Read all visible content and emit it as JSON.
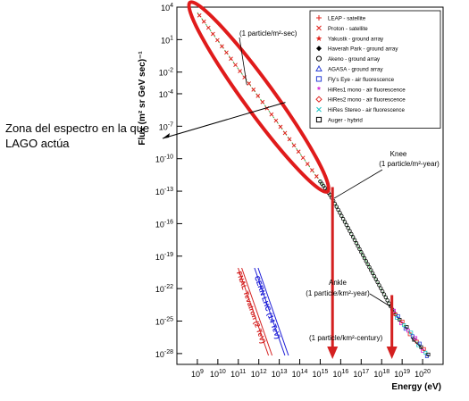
{
  "side_note": "Zona del espectro en la que LAGO actúa",
  "chart_data": {
    "type": "scatter",
    "xlabel": "Energy (eV)",
    "ylabel": "Flux (m² sr GeV sec)⁻¹",
    "x_scale": "log",
    "y_scale": "log",
    "xlim": [
      100000000.0,
      1e+21
    ],
    "ylim": [
      1e-29,
      10000.0
    ],
    "x_tick_exponents": [
      9,
      10,
      11,
      12,
      13,
      14,
      15,
      16,
      17,
      18,
      19,
      20
    ],
    "y_tick_exponents": [
      4,
      1,
      -2,
      -4,
      -7,
      -10,
      -13,
      -16,
      -19,
      -22,
      -25,
      -28
    ],
    "legend": {
      "placement": "top-right",
      "entries": [
        {
          "name": "LEAP - satellite",
          "marker": "plus",
          "color": "#e0201a"
        },
        {
          "name": "Proton - satellite",
          "marker": "cross",
          "color": "#e0201a"
        },
        {
          "name": "Yakustk - ground array",
          "marker": "star",
          "color": "#e0201a"
        },
        {
          "name": "Haverah Park - ground array",
          "marker": "diamond-filled",
          "color": "#000000"
        },
        {
          "name": "Akeno - ground array",
          "marker": "circle",
          "color": "#000000"
        },
        {
          "name": "AGASA - ground array",
          "marker": "triangle",
          "color": "#2a3fd6"
        },
        {
          "name": "Fly's Eye - air fluorescence",
          "marker": "square",
          "color": "#2a3fd6"
        },
        {
          "name": "HiRes1 mono - air fluorescence",
          "marker": "asterisk",
          "color": "#d61ad6"
        },
        {
          "name": "HiRes2 mono - air fluorescence",
          "marker": "diamond",
          "color": "#e0201a"
        },
        {
          "name": "HiRes Stereo - air fluorescence",
          "marker": "cross",
          "color": "#19c4c4"
        },
        {
          "name": "Auger - hybrid",
          "marker": "square",
          "color": "#000000"
        }
      ]
    },
    "spectrum": [
      {
        "log_e": 9.0,
        "log_flux": 3.5
      },
      {
        "log_e": 15.5,
        "log_flux": -13.4
      },
      {
        "log_e": 18.6,
        "log_flux": -24.2
      },
      {
        "log_e": 20.3,
        "log_flux": -28.3
      }
    ],
    "annotations": [
      {
        "text": "(1 particle/m²-sec)",
        "log_e": 11.3,
        "log_flux": 0.6
      },
      {
        "text": "Knee",
        "log_e": 15.5,
        "log_flux": -12.6
      },
      {
        "text": "(1 particle/m²-year)",
        "log_e": 15.5,
        "log_flux": -12.6
      },
      {
        "text": "Ankle",
        "log_e": 18.5,
        "log_flux": -24.2
      },
      {
        "text": "(1 particle/km²-year)",
        "log_e": 18.5,
        "log_flux": -24.2
      },
      {
        "text": "(1 particle/km²-century)",
        "log_e": 19.5,
        "log_flux": -26.5
      }
    ],
    "accelerators": [
      {
        "label": "FNAL Tevatron (2 TeV)",
        "log_e": 12.3,
        "color": "#d42020"
      },
      {
        "label": "CERN LHC (14 TeV)",
        "log_e": 13.1,
        "color": "#1a1ad6"
      }
    ],
    "highlight_region": {
      "log_e_min": 9.0,
      "log_e_max": 15.0,
      "color": "#e01b1b"
    },
    "down_arrows": [
      {
        "log_e": 15.6,
        "color": "#d42020"
      },
      {
        "log_e": 18.5,
        "color": "#d42020"
      }
    ]
  }
}
